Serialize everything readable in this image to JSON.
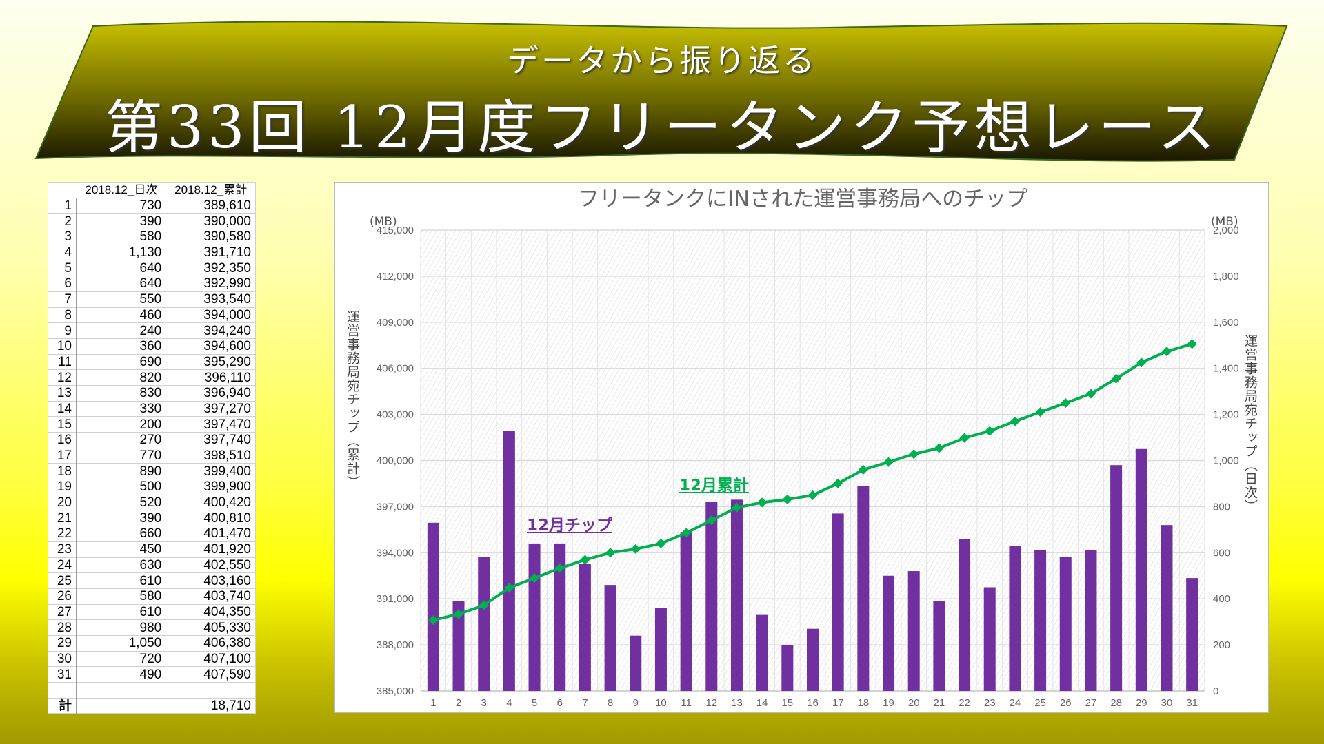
{
  "banner": {
    "subtitle": "データから振り返る",
    "title": "第33回 12月度フリータンク予想レース"
  },
  "table": {
    "headers": [
      "",
      "2018.12_日次",
      "2018.12_累計"
    ],
    "rows": [
      [
        "1",
        "730",
        "389,610"
      ],
      [
        "2",
        "390",
        "390,000"
      ],
      [
        "3",
        "580",
        "390,580"
      ],
      [
        "4",
        "1,130",
        "391,710"
      ],
      [
        "5",
        "640",
        "392,350"
      ],
      [
        "6",
        "640",
        "392,990"
      ],
      [
        "7",
        "550",
        "393,540"
      ],
      [
        "8",
        "460",
        "394,000"
      ],
      [
        "9",
        "240",
        "394,240"
      ],
      [
        "10",
        "360",
        "394,600"
      ],
      [
        "11",
        "690",
        "395,290"
      ],
      [
        "12",
        "820",
        "396,110"
      ],
      [
        "13",
        "830",
        "396,940"
      ],
      [
        "14",
        "330",
        "397,270"
      ],
      [
        "15",
        "200",
        "397,470"
      ],
      [
        "16",
        "270",
        "397,740"
      ],
      [
        "17",
        "770",
        "398,510"
      ],
      [
        "18",
        "890",
        "399,400"
      ],
      [
        "19",
        "500",
        "399,900"
      ],
      [
        "20",
        "520",
        "400,420"
      ],
      [
        "21",
        "390",
        "400,810"
      ],
      [
        "22",
        "660",
        "401,470"
      ],
      [
        "23",
        "450",
        "401,920"
      ],
      [
        "24",
        "630",
        "402,550"
      ],
      [
        "25",
        "610",
        "403,160"
      ],
      [
        "26",
        "580",
        "403,740"
      ],
      [
        "27",
        "610",
        "404,350"
      ],
      [
        "28",
        "980",
        "405,330"
      ],
      [
        "29",
        "1,050",
        "406,380"
      ],
      [
        "30",
        "720",
        "407,100"
      ],
      [
        "31",
        "490",
        "407,590"
      ]
    ],
    "total_label": "計",
    "total_value": "18,710"
  },
  "colors": {
    "bar": "#7030a0",
    "line": "#00b050"
  },
  "chart_data": {
    "type": "bar+line",
    "title": "フリータンクにINされた運営事務局へのチップ",
    "left_unit": "(MB)",
    "right_unit": "(MB)",
    "ylabel": "運営事務局宛チップ（累計）",
    "y2label": "運営事務局宛チップ（日次）",
    "categories": [
      "1",
      "2",
      "3",
      "4",
      "5",
      "6",
      "7",
      "8",
      "9",
      "10",
      "11",
      "12",
      "13",
      "14",
      "15",
      "16",
      "17",
      "18",
      "19",
      "20",
      "21",
      "22",
      "23",
      "24",
      "25",
      "26",
      "27",
      "28",
      "29",
      "30",
      "31"
    ],
    "ylim": [
      385000,
      415000
    ],
    "y_ticks": [
      "385,000",
      "388,000",
      "391,000",
      "394,000",
      "397,000",
      "400,000",
      "403,000",
      "406,000",
      "409,000",
      "412,000",
      "415,000"
    ],
    "y2lim": [
      0,
      2000
    ],
    "y2_ticks": [
      "0",
      "200",
      "400",
      "600",
      "800",
      "1,000",
      "1,200",
      "1,400",
      "1,600",
      "1,800",
      "2,000"
    ],
    "series": [
      {
        "name": "12月チップ",
        "type": "bar",
        "axis": "right",
        "values": [
          730,
          390,
          580,
          1130,
          640,
          640,
          550,
          460,
          240,
          360,
          690,
          820,
          830,
          330,
          200,
          270,
          770,
          890,
          500,
          520,
          390,
          660,
          450,
          630,
          610,
          580,
          610,
          980,
          1050,
          720,
          490
        ]
      },
      {
        "name": "12月累計",
        "type": "line",
        "axis": "left",
        "values": [
          389610,
          390000,
          390580,
          391710,
          392350,
          392990,
          393540,
          394000,
          394240,
          394600,
          395290,
          396110,
          396940,
          397270,
          397470,
          397740,
          398510,
          399400,
          399900,
          400420,
          400810,
          401470,
          401920,
          402550,
          403160,
          403740,
          404350,
          405330,
          406380,
          407100,
          407590
        ]
      }
    ],
    "grid": true
  }
}
